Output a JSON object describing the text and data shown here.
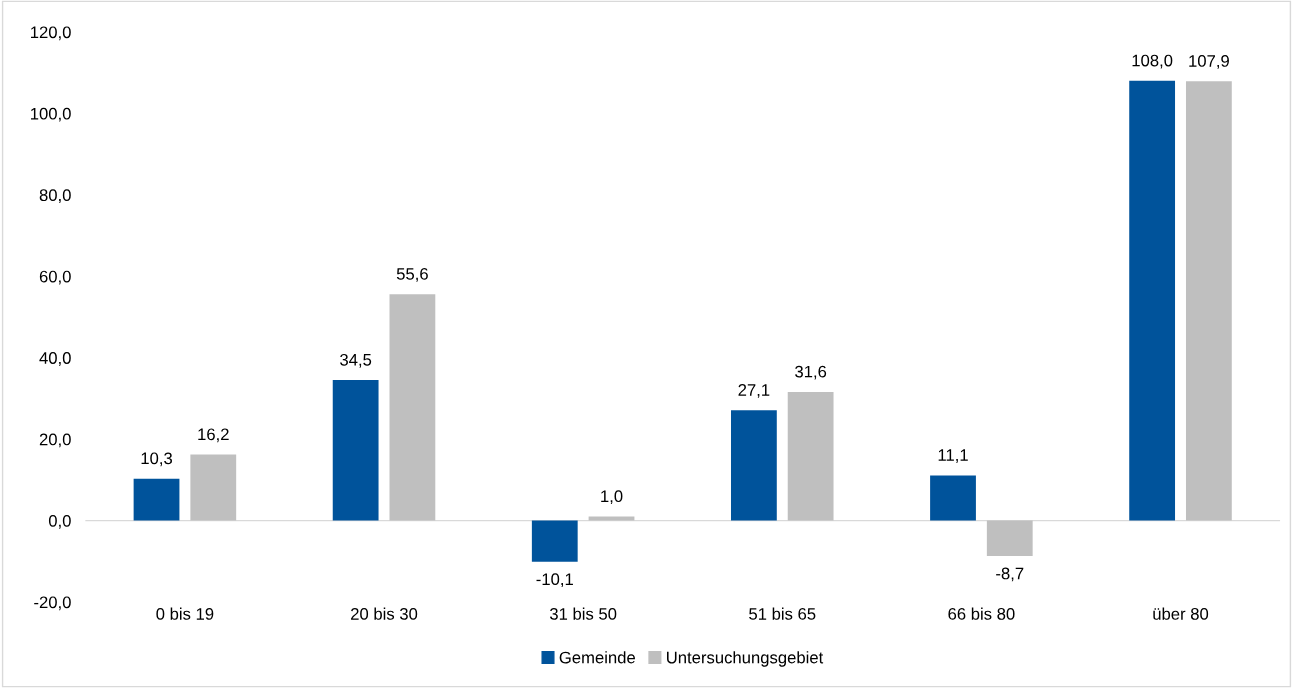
{
  "chart_data": {
    "type": "bar",
    "categories": [
      "0 bis 19",
      "20 bis 30",
      "31 bis 50",
      "51 bis 65",
      "66 bis 80",
      "über 80"
    ],
    "series": [
      {
        "name": "Gemeinde",
        "color": "#00539b",
        "values": [
          10.3,
          34.5,
          -10.1,
          27.1,
          11.1,
          108.0
        ],
        "value_labels": [
          "10,3",
          "34,5",
          "-10,1",
          "27,1",
          "11,1",
          "108,0"
        ]
      },
      {
        "name": "Untersuchungsgebiet",
        "color": "#bfbfbf",
        "values": [
          16.2,
          55.6,
          1.0,
          31.6,
          -8.7,
          107.9
        ],
        "value_labels": [
          "16,2",
          "55,6",
          "1,0",
          "31,6",
          "-8,7",
          "107,9"
        ]
      }
    ],
    "ylim": [
      -20,
      120
    ],
    "yticks": [
      {
        "value": -20,
        "label": "-20,0"
      },
      {
        "value": 0,
        "label": "0,0"
      },
      {
        "value": 20,
        "label": "20,0"
      },
      {
        "value": 40,
        "label": "40,0"
      },
      {
        "value": 60,
        "label": "60,0"
      },
      {
        "value": 80,
        "label": "80,0"
      },
      {
        "value": 100,
        "label": "100,0"
      },
      {
        "value": 120,
        "label": "120,0"
      }
    ],
    "ref_lines": [
      {
        "axis": "y",
        "value": 0,
        "color": "#d9d9d9"
      }
    ],
    "grid": false,
    "legend": "bottom"
  }
}
